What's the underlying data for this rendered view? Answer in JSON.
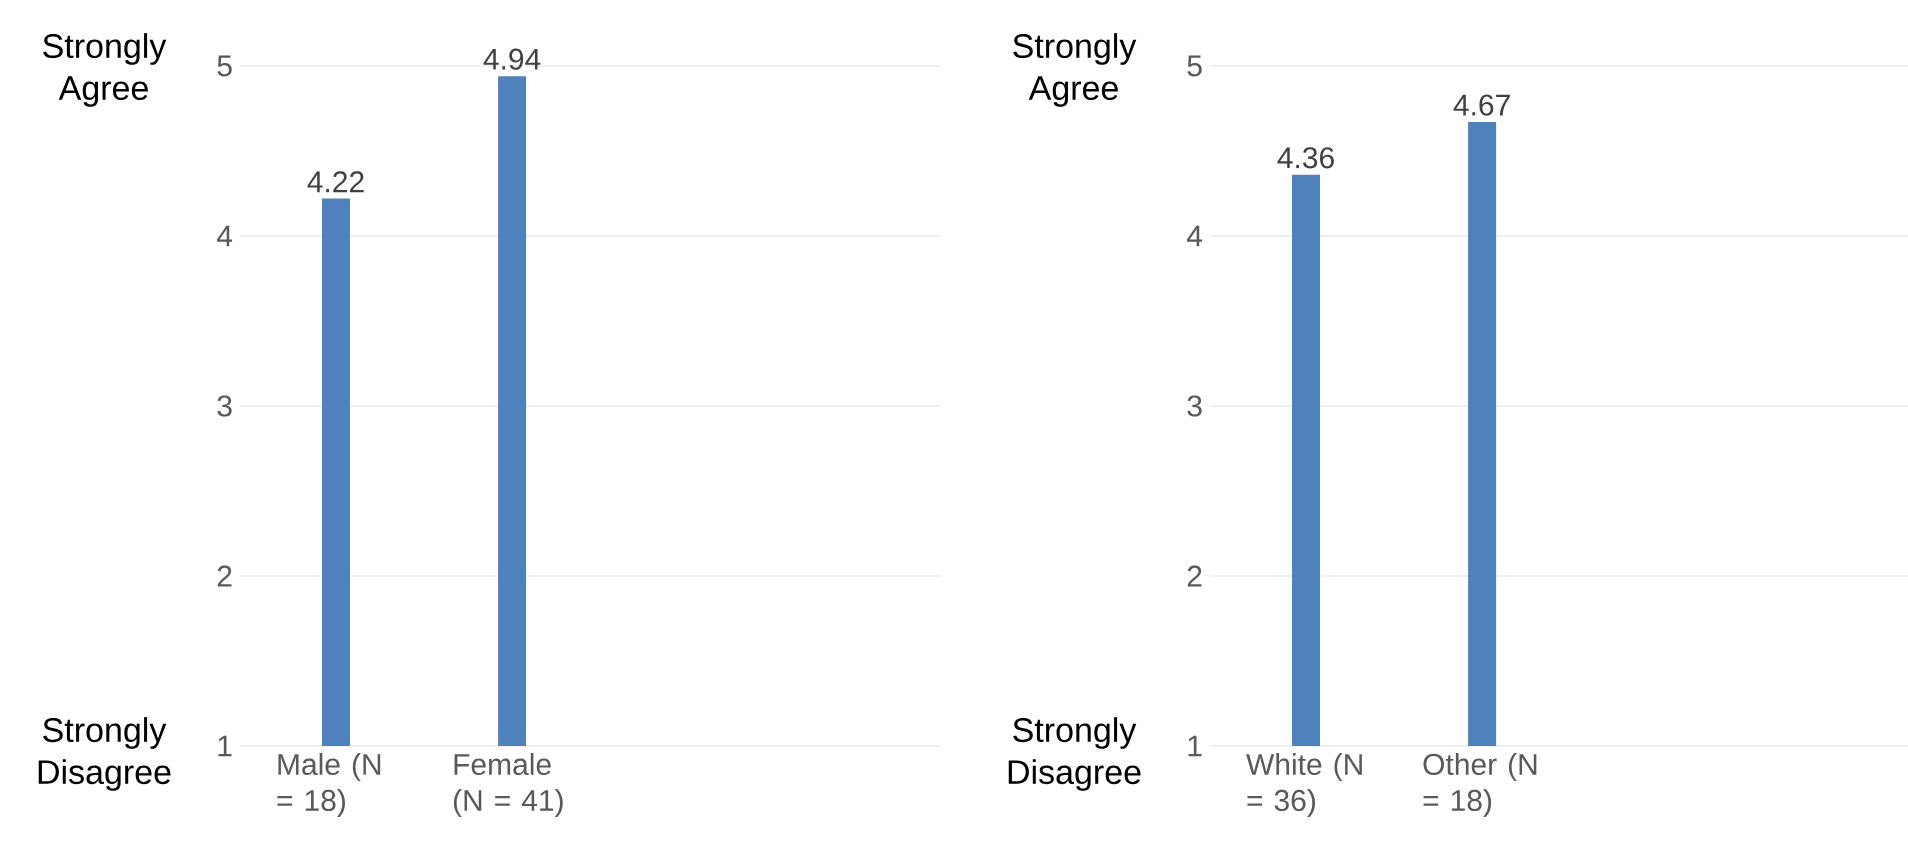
{
  "chart_data": [
    {
      "type": "bar",
      "categories": [
        "Male (N = 18)",
        "Female (N = 41)"
      ],
      "values": [
        4.22,
        4.94
      ],
      "color": "#4f81bd",
      "ylim": [
        1,
        5
      ],
      "yticks": [
        1,
        2,
        3,
        4,
        5
      ],
      "grid": "y",
      "data_labels": true,
      "annotations": [
        "Strongly Agree",
        "Strongly Disagree"
      ]
    },
    {
      "type": "bar",
      "categories": [
        "White (N = 36)",
        "Other (N = 18)"
      ],
      "values": [
        4.36,
        4.67
      ],
      "color": "#4f81bd",
      "ylim": [
        1,
        5
      ],
      "yticks": [
        1,
        2,
        3,
        4,
        5
      ],
      "grid": "y",
      "data_labels": true,
      "annotations": [
        "Strongly Agree",
        "Strongly Disagree"
      ]
    }
  ]
}
